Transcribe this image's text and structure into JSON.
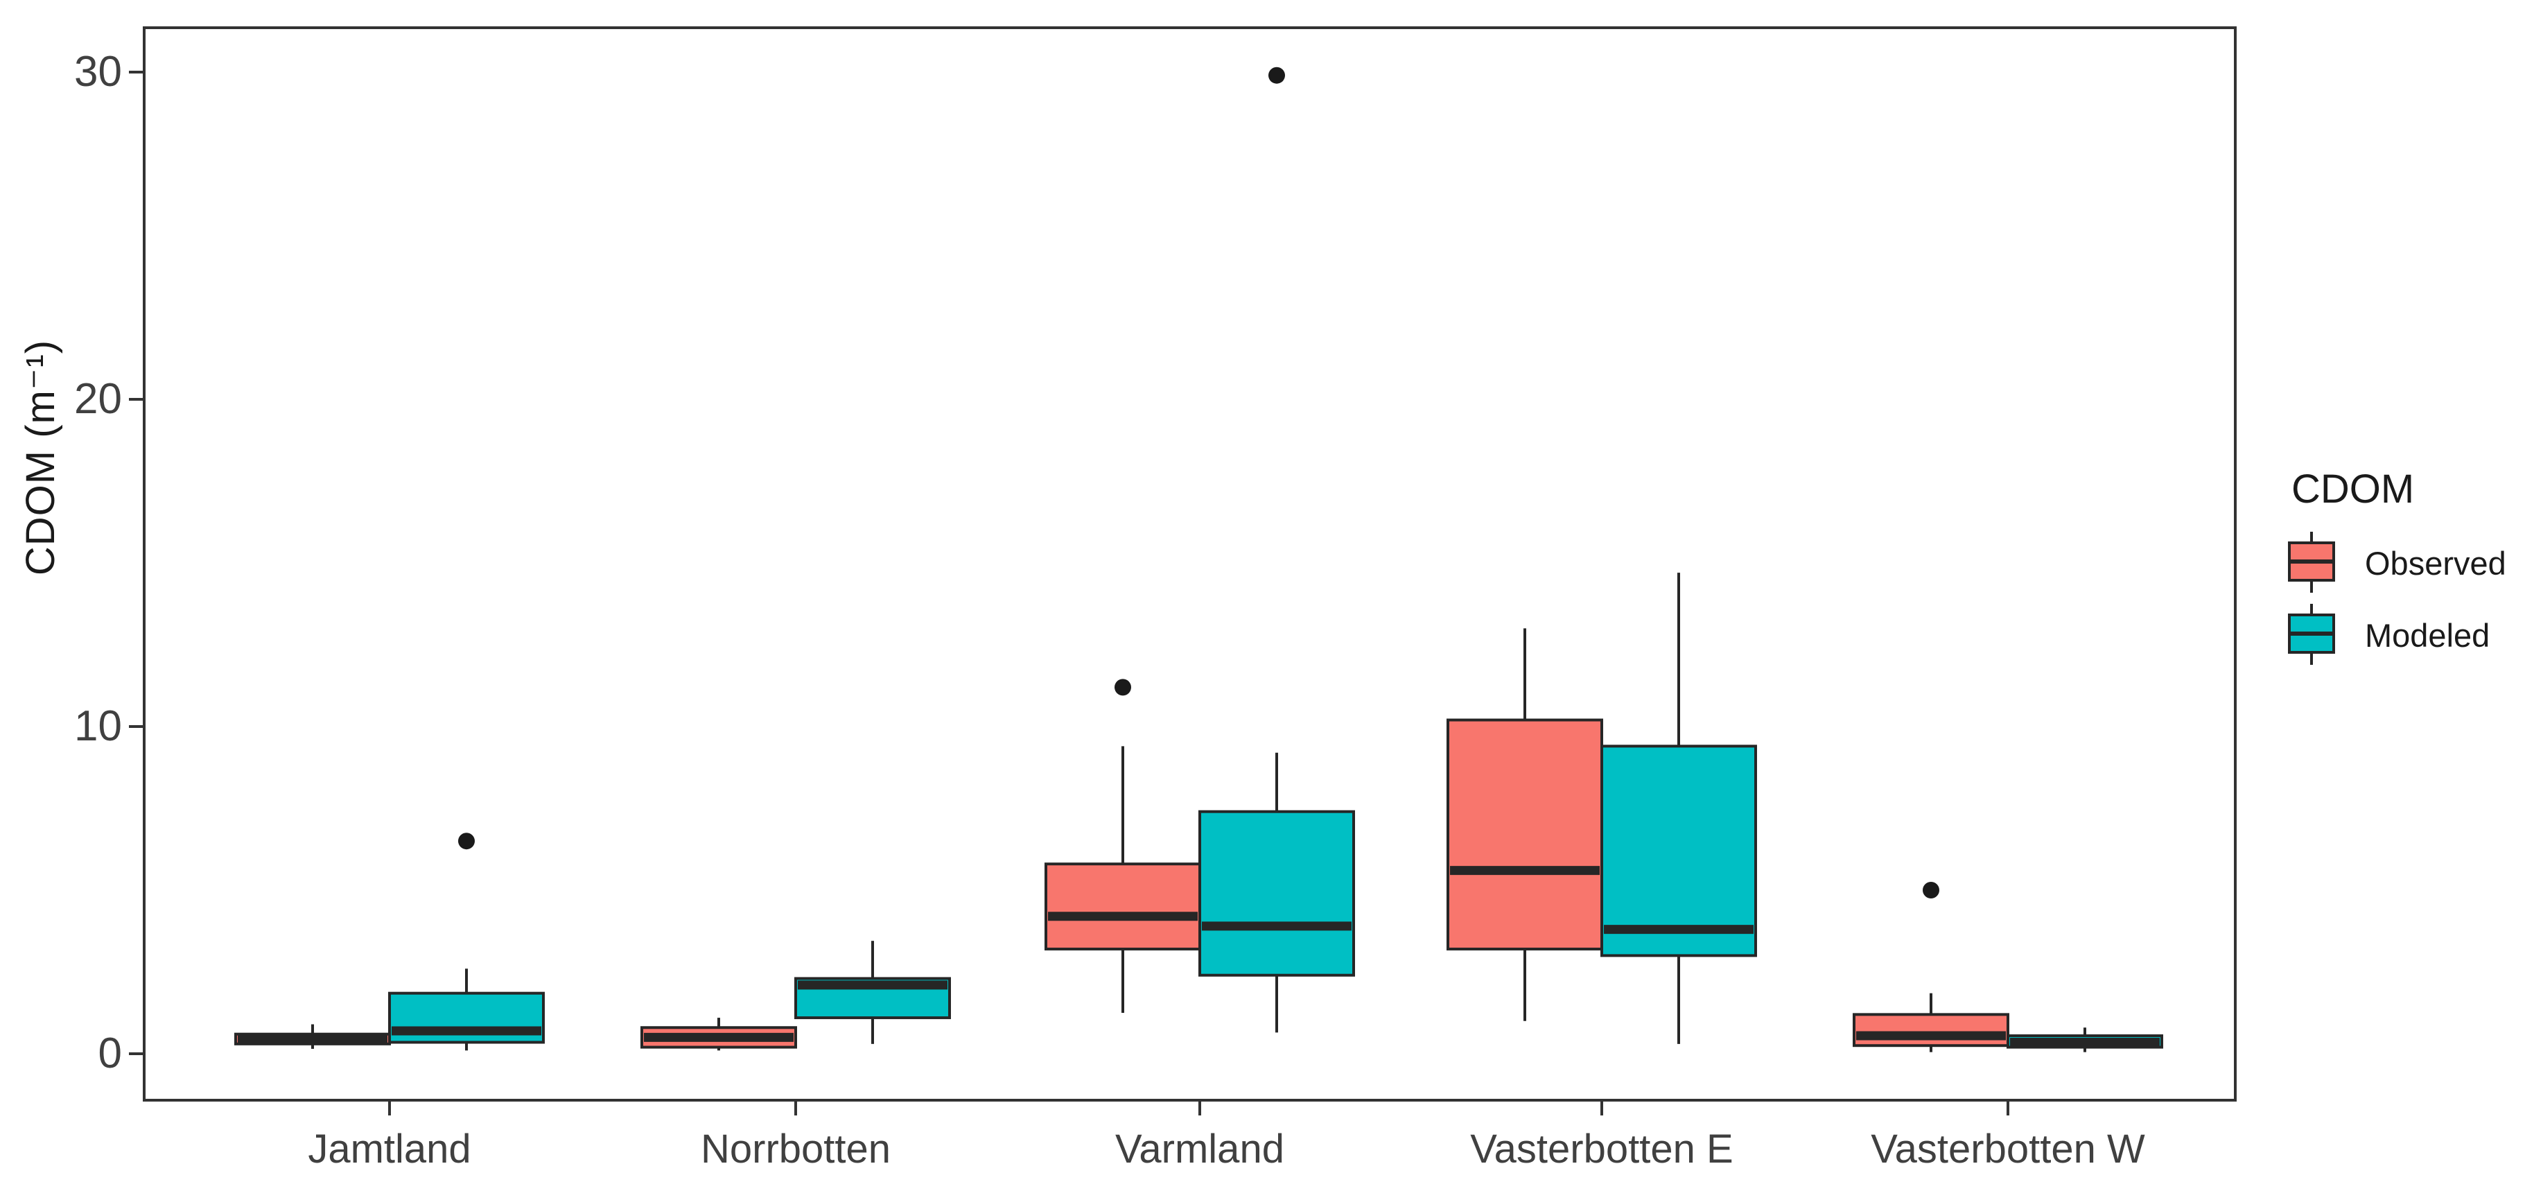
{
  "chart_data": {
    "type": "grouped_boxplot",
    "title": "",
    "xlabel": "",
    "ylabel": "CDOM (m⁻¹)",
    "ylim": [
      -1.4,
      31.4
    ],
    "ytick_values": [
      0,
      10,
      20,
      30
    ],
    "ytick_labels": [
      "0",
      "10",
      "20",
      "30"
    ],
    "grid": "off",
    "categories": [
      "Jamtland",
      "Norrbotten",
      "Varmland",
      "Vasterbotten E",
      "Vasterbotten W"
    ],
    "series": [
      {
        "name": "Observed",
        "color": "#F8766D",
        "boxes": [
          {
            "category": "Jamtland",
            "min": 0.15,
            "q1": 0.3,
            "median": 0.45,
            "q3": 0.6,
            "max": 0.9,
            "outliers": []
          },
          {
            "category": "Norrbotten",
            "min": 0.1,
            "q1": 0.2,
            "median": 0.5,
            "q3": 0.8,
            "max": 1.1,
            "outliers": []
          },
          {
            "category": "Varmland",
            "min": 1.25,
            "q1": 3.2,
            "median": 4.2,
            "q3": 5.8,
            "max": 9.4,
            "outliers": [
              11.2
            ]
          },
          {
            "category": "Vasterbotten E",
            "min": 1.0,
            "q1": 3.2,
            "median": 5.6,
            "q3": 10.2,
            "max": 13.0,
            "outliers": []
          },
          {
            "category": "Vasterbotten W",
            "min": 0.05,
            "q1": 0.25,
            "median": 0.55,
            "q3": 1.2,
            "max": 1.85,
            "outliers": [
              5.0
            ]
          }
        ]
      },
      {
        "name": "Modeled",
        "color": "#00BFC4",
        "boxes": [
          {
            "category": "Jamtland",
            "min": 0.1,
            "q1": 0.35,
            "median": 0.7,
            "q3": 1.85,
            "max": 2.6,
            "outliers": [
              6.5
            ]
          },
          {
            "category": "Norrbotten",
            "min": 0.3,
            "q1": 1.1,
            "median": 2.1,
            "q3": 2.3,
            "max": 3.45,
            "outliers": []
          },
          {
            "category": "Varmland",
            "min": 0.65,
            "q1": 2.4,
            "median": 3.9,
            "q3": 7.4,
            "max": 9.2,
            "outliers": [
              29.9
            ]
          },
          {
            "category": "Vasterbotten E",
            "min": 0.3,
            "q1": 3.0,
            "median": 3.8,
            "q3": 9.4,
            "max": 14.7,
            "outliers": []
          },
          {
            "category": "Vasterbotten W",
            "min": 0.05,
            "q1": 0.2,
            "median": 0.35,
            "q3": 0.55,
            "max": 0.8,
            "outliers": []
          }
        ]
      }
    ],
    "legend": {
      "title": "CDOM",
      "position": "right",
      "entries": [
        "Observed",
        "Modeled"
      ]
    },
    "style": {
      "background": "#FFFFFF",
      "panel_border": "#333333",
      "box_border": "#262626",
      "median_color": "#262626",
      "whisker_color": "#262626",
      "outlier_color": "#1A1A1A",
      "tick_label_color": "#404040",
      "axis_title_color": "#1A1A1A"
    }
  }
}
